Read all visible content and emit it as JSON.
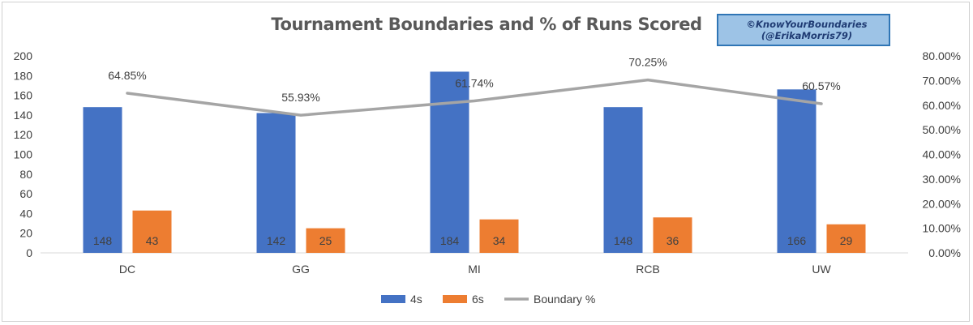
{
  "watermark": {
    "line1": "©KnowYourBoundaries",
    "line2": "(@ErikaMorris79)"
  },
  "chart_data": {
    "type": "bar",
    "title": "Tournament Boundaries and % of Runs Scored",
    "categories": [
      "DC",
      "GG",
      "MI",
      "RCB",
      "UW"
    ],
    "series": [
      {
        "name": "4s",
        "type": "bar",
        "axis": "left",
        "color": "#4472c4",
        "values": [
          148,
          142,
          184,
          148,
          166
        ],
        "labels": [
          "148",
          "142",
          "184",
          "148",
          "166"
        ]
      },
      {
        "name": "6s",
        "type": "bar",
        "axis": "left",
        "color": "#ed7d31",
        "values": [
          43,
          25,
          34,
          36,
          29
        ],
        "labels": [
          "43",
          "25",
          "34",
          "36",
          "29"
        ]
      },
      {
        "name": "Boundary %",
        "type": "line",
        "axis": "right",
        "color": "#a5a5a5",
        "values": [
          0.6485,
          0.5593,
          0.6174,
          0.7025,
          0.6057
        ],
        "labels": [
          "64.85%",
          "55.93%",
          "61.74%",
          "70.25%",
          "60.57%"
        ]
      }
    ],
    "y_left": {
      "min": 0,
      "max": 200,
      "ticks": [
        "0",
        "20",
        "40",
        "60",
        "80",
        "100",
        "120",
        "140",
        "160",
        "180",
        "200"
      ]
    },
    "y_right": {
      "min": 0,
      "max": 0.8,
      "ticks": [
        "0.00%",
        "10.00%",
        "20.00%",
        "30.00%",
        "40.00%",
        "50.00%",
        "60.00%",
        "70.00%",
        "80.00%"
      ]
    },
    "grid": false,
    "legend": "bottom"
  }
}
